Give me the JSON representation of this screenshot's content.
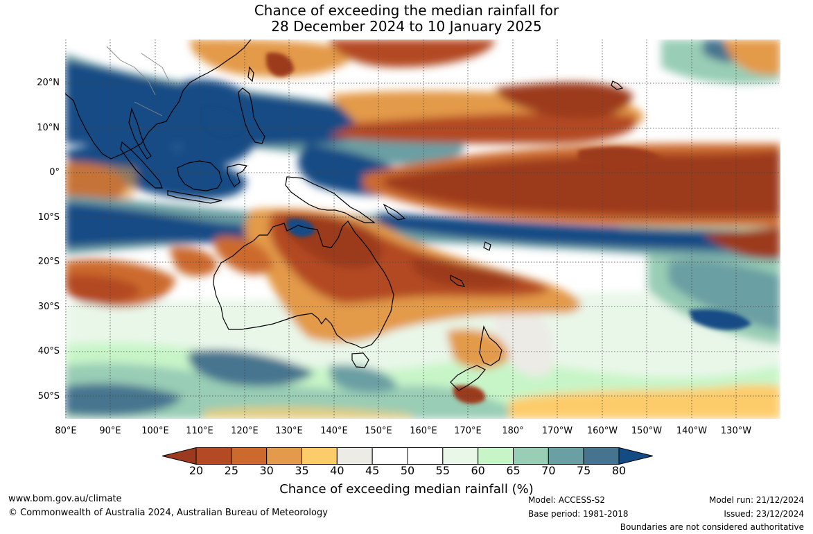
{
  "title": {
    "line1": "Chance of exceeding the median rainfall for",
    "line2": "28 December 2024 to 10 January 2025"
  },
  "map": {
    "lat_labels": [
      "20°N",
      "10°N",
      "0°",
      "10°S",
      "20°S",
      "30°S",
      "40°S",
      "50°S"
    ],
    "lon_labels": [
      "80°E",
      "90°E",
      "100°E",
      "110°E",
      "120°E",
      "130°E",
      "140°E",
      "150°E",
      "160°E",
      "170°E",
      "180°",
      "170°W",
      "160°W",
      "150°W",
      "140°W",
      "130°W"
    ]
  },
  "colorbar": {
    "ticks": [
      "20",
      "25",
      "30",
      "35",
      "40",
      "45",
      "50",
      "55",
      "60",
      "65",
      "70",
      "75",
      "80"
    ],
    "colors": [
      "#9c3a1f",
      "#b34a23",
      "#cc6a2e",
      "#e39a4a",
      "#fdcc6a",
      "#ecebe6",
      "#ffffff",
      "#ffffff",
      "#e9f7e9",
      "#c8f5c8",
      "#99cdb5",
      "#6a9fa3",
      "#46748f",
      "#134b85"
    ],
    "title": "Chance of exceeding median rainfall (%)"
  },
  "footer": {
    "website": "www.bom.gov.au/climate",
    "copyright": "© Commonwealth of Australia 2024, Australian Bureau of Meteorology",
    "model": "Model: ACCESS-S2",
    "base_period": "Base period: 1981-2018",
    "model_run": "Model run: 21/12/2024",
    "issued": "Issued: 23/12/2024",
    "boundaries": "Boundaries are not considered authoritative"
  }
}
